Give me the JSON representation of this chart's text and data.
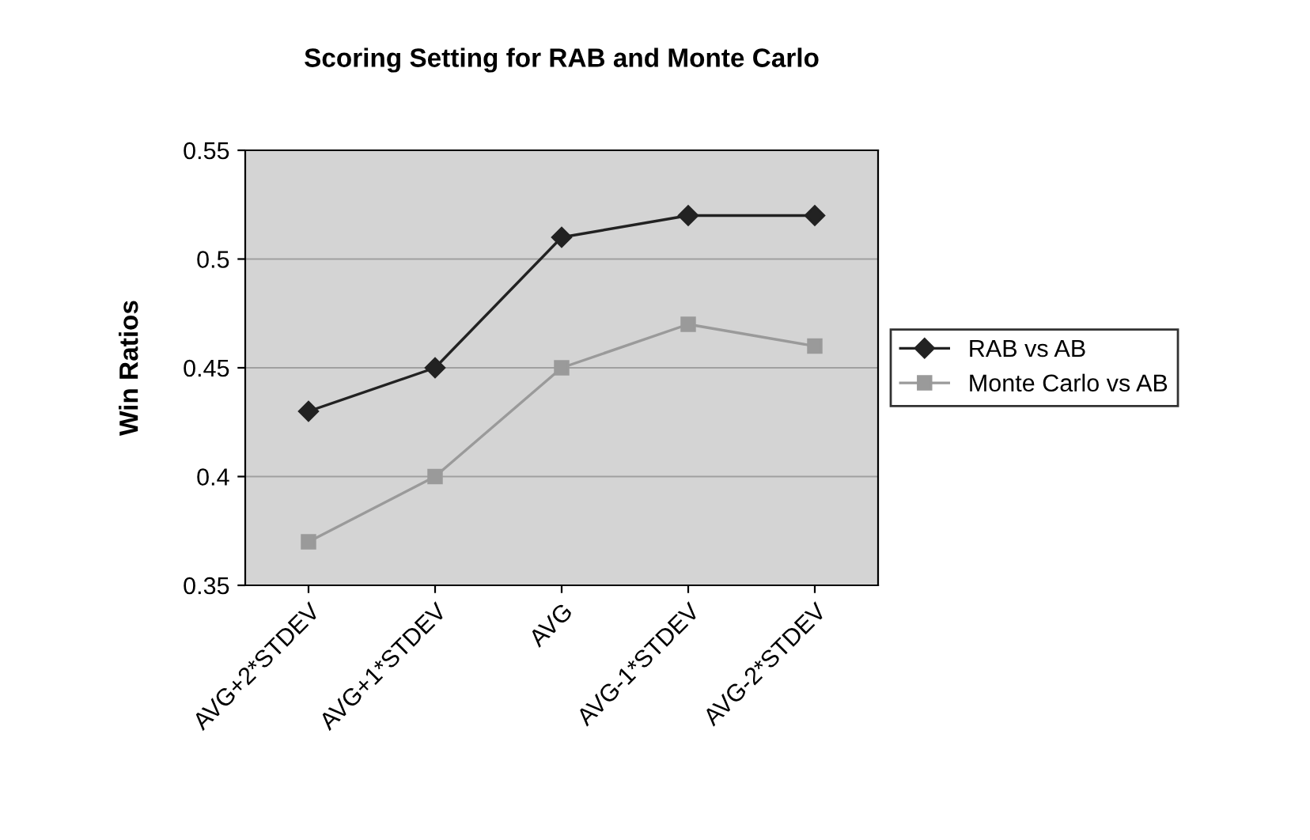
{
  "chart_data": {
    "type": "line",
    "title": "Scoring Setting for RAB and Monte Carlo",
    "ylabel": "Win Ratios",
    "categories": [
      "AVG+2*STDEV",
      "AVG+1*STDEV",
      "AVG",
      "AVG-1*STDEV",
      "AVG-2*STDEV"
    ],
    "series": [
      {
        "name": "RAB vs AB",
        "color": "#222222",
        "marker": "diamond",
        "values": [
          0.43,
          0.45,
          0.51,
          0.52,
          0.52
        ]
      },
      {
        "name": "Monte Carlo vs AB",
        "color": "#9a9a9a",
        "marker": "square",
        "values": [
          0.37,
          0.4,
          0.45,
          0.47,
          0.46
        ]
      }
    ],
    "ylim": [
      0.35,
      0.55
    ],
    "yticks": [
      0.35,
      0.4,
      0.45,
      0.5,
      0.55
    ],
    "grid": "y",
    "legend": "right",
    "line_style": "solid"
  }
}
